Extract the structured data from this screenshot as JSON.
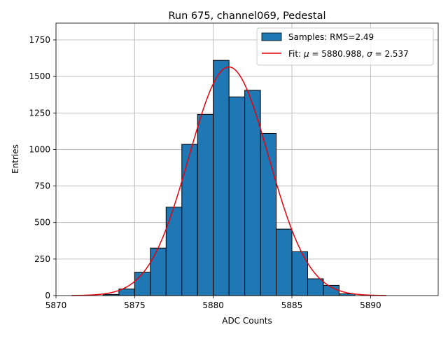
{
  "chart_data": {
    "type": "histogram",
    "title": "Run 675, channel069, Pedestal",
    "xlabel": "ADC Counts",
    "ylabel": "Entries",
    "xlim": [
      5870,
      5894.3
    ],
    "ylim": [
      0,
      1865
    ],
    "xticks": [
      5870,
      5875,
      5880,
      5885,
      5890
    ],
    "yticks": [
      0,
      250,
      500,
      750,
      1000,
      1250,
      1500,
      1750
    ],
    "xtick_labels": [
      "5870",
      "5875",
      "5880",
      "5885",
      "5890"
    ],
    "ytick_labels": [
      "0",
      "250",
      "500",
      "750",
      "1000",
      "1250",
      "1500",
      "1750"
    ],
    "grid": true,
    "legend_position": "top-right",
    "bar_color": "#1f77b4",
    "bar_edge_color": "#000000",
    "fit_color": "#e8000b",
    "bins": [
      {
        "left": 5873,
        "right": 5874,
        "count": 8
      },
      {
        "left": 5874,
        "right": 5875,
        "count": 45
      },
      {
        "left": 5875,
        "right": 5876,
        "count": 160
      },
      {
        "left": 5876,
        "right": 5877,
        "count": 325
      },
      {
        "left": 5877,
        "right": 5878,
        "count": 605
      },
      {
        "left": 5878,
        "right": 5879,
        "count": 1035
      },
      {
        "left": 5879,
        "right": 5880,
        "count": 1240
      },
      {
        "left": 5880,
        "right": 5881,
        "count": 1610
      },
      {
        "left": 5881,
        "right": 5882,
        "count": 1360
      },
      {
        "left": 5882,
        "right": 5883,
        "count": 1405
      },
      {
        "left": 5883,
        "right": 5884,
        "count": 1110
      },
      {
        "left": 5884,
        "right": 5885,
        "count": 455
      },
      {
        "left": 5885,
        "right": 5886,
        "count": 300
      },
      {
        "left": 5886,
        "right": 5887,
        "count": 115
      },
      {
        "left": 5887,
        "right": 5888,
        "count": 70
      },
      {
        "left": 5888,
        "right": 5889,
        "count": 12
      }
    ],
    "fit": {
      "mu": 5880.988,
      "sigma": 2.537,
      "amplitude": 1565,
      "x_range": [
        5871,
        5891
      ]
    },
    "legend": {
      "samples_label": "Samples: RMS=2.49",
      "fit_label_prefix": "Fit: ",
      "fit_mu_symbol": "μ",
      "fit_mu_text": " = 5880.988, ",
      "fit_sigma_symbol": "σ",
      "fit_sigma_text": " = 2.537"
    }
  }
}
